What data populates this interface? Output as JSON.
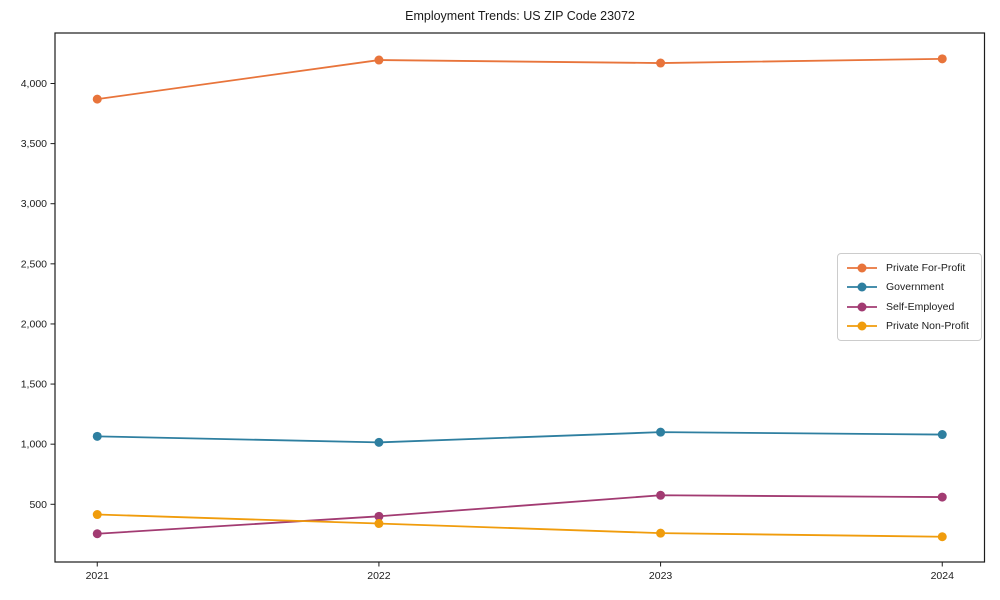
{
  "chart_data": {
    "type": "line",
    "title": "Employment Trends: US ZIP Code 23072",
    "categories": [
      2021,
      2022,
      2023,
      2024
    ],
    "series": [
      {
        "name": "Private For-Profit",
        "color": "#E8743B",
        "values": [
          3870,
          4195,
          4170,
          4205
        ]
      },
      {
        "name": "Government",
        "color": "#2E7FA0",
        "values": [
          1065,
          1015,
          1100,
          1080
        ]
      },
      {
        "name": "Self-Employed",
        "color": "#A23B72",
        "values": [
          255,
          400,
          575,
          560
        ]
      },
      {
        "name": "Private Non-Profit",
        "color": "#F09C0C",
        "values": [
          415,
          340,
          260,
          230
        ]
      }
    ],
    "xlabel": "",
    "ylabel": "",
    "xticks": [
      "2021",
      "2022",
      "2023",
      "2024"
    ],
    "yticks": [
      500,
      1000,
      1500,
      2000,
      2500,
      3000,
      3500,
      4000
    ],
    "ytick_labels": [
      "500",
      "1,000",
      "1,500",
      "2,000",
      "2,500",
      "3,000",
      "3,500",
      "4,000"
    ],
    "xlim": [
      2020.85,
      2024.15
    ],
    "ylim": [
      20,
      4420
    ],
    "grid": false,
    "legend_position": "center right",
    "marker": "circle",
    "frame": "box"
  }
}
